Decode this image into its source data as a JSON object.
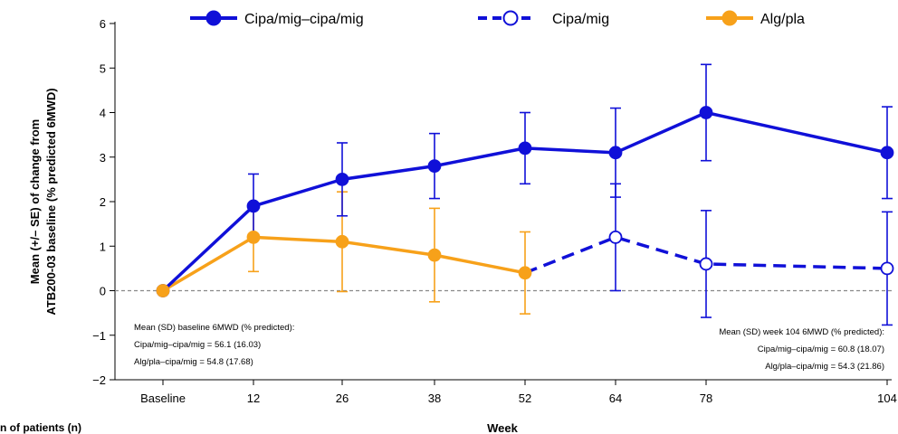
{
  "chart_data": {
    "type": "line",
    "ylabel_lines": [
      "Mean (+/– SE) of change from",
      "ATB200-03 baseline (% predicted 6MWD)"
    ],
    "xlabel": "Week",
    "categories": [
      "Baseline",
      "12",
      "26",
      "38",
      "52",
      "64",
      "78",
      "104"
    ],
    "x_weeks": [
      0,
      12,
      26,
      38,
      52,
      64,
      78,
      104
    ],
    "ylim": [
      -2,
      6
    ],
    "yticks": [
      6,
      5,
      4,
      3,
      2,
      1,
      0,
      -1,
      -2
    ],
    "ytick_labels": [
      "6",
      "5",
      "4",
      "3",
      "2",
      "1",
      "0",
      "−1",
      "−2"
    ],
    "zero_line": true,
    "legend_position": "top",
    "series": [
      {
        "name": "Cipa/mig–cipa/mig",
        "color": "#1010d8",
        "style": "solid",
        "marker": "filled",
        "x": [
          0,
          12,
          26,
          38,
          52,
          64,
          78,
          104
        ],
        "y": [
          0,
          1.9,
          2.5,
          2.8,
          3.2,
          3.1,
          4.0,
          3.1
        ],
        "err": [
          0,
          0.72,
          0.82,
          0.73,
          0.8,
          1.0,
          1.08,
          1.03
        ]
      },
      {
        "name": "Cipa/mig",
        "color": "#1010d8",
        "style": "dashed",
        "marker": "open",
        "x": [
          52,
          64,
          78,
          104
        ],
        "y": [
          0.4,
          1.2,
          0.6,
          0.5
        ],
        "err": [
          null,
          1.2,
          1.2,
          1.27
        ],
        "connect_from_previous": true
      },
      {
        "name": "Alg/pla",
        "color": "#f7a11a",
        "style": "solid",
        "marker": "filled",
        "x": [
          0,
          12,
          26,
          38,
          52
        ],
        "y": [
          0,
          1.2,
          1.1,
          0.8,
          0.4
        ],
        "err": [
          0,
          0.77,
          1.12,
          1.05,
          0.92
        ]
      }
    ],
    "annotations": {
      "left": [
        "Mean (SD) baseline 6MWD (% predicted):",
        "Cipa/mig–cipa/mig = 56.1 (16.03)",
        "Alg/pla–cipa/mig = 54.8 (17.68)"
      ],
      "right": [
        "Mean (SD) week 104 6MWD (% predicted):",
        "Cipa/mig–cipa/mig = 60.8 (18.07)",
        "Alg/pla–cipa/mig = 54.3 (21.86)"
      ]
    }
  },
  "footer_cutoff_text": "n of patients (n)"
}
